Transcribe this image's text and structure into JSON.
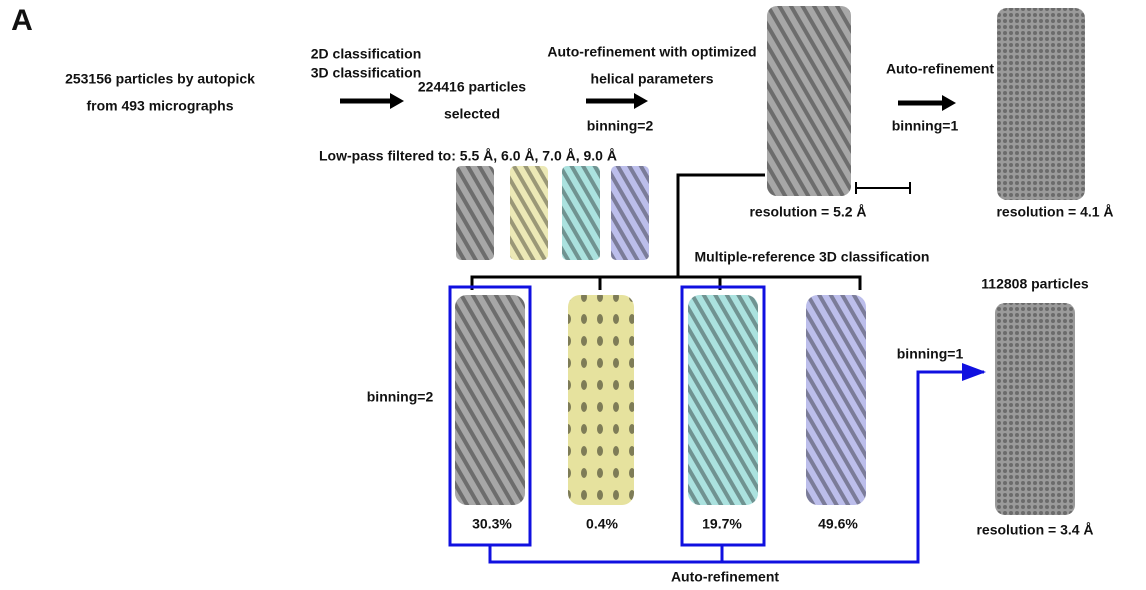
{
  "panel_label": "A",
  "start": {
    "line1": "253156 particles by autopick",
    "line2": "from 493 micrographs"
  },
  "classification": {
    "line1": "2D classification",
    "line2": "3D classification"
  },
  "selected": {
    "line1": "224416 particles",
    "line2": "selected"
  },
  "helical_refinement": {
    "line1": "Auto-refinement with optimized",
    "line2": "helical parameters",
    "binning": "binning=2",
    "resolution": "resolution = 5.2 Å"
  },
  "low_pass": "Low-pass filtered to: 5.5 Å, 6.0 Å, 7.0 Å, 9.0 Å",
  "refinement_bin1": {
    "label": "Auto-refinement",
    "binning": "binning=1",
    "resolution": "resolution = 4.1 Å"
  },
  "multi_ref": {
    "label": "Multiple-reference 3D classification",
    "binning": "binning=2",
    "classes": [
      "30.3%",
      "0.4%",
      "19.7%",
      "49.6%"
    ]
  },
  "final": {
    "particles": "112808 particles",
    "binning": "binning=1",
    "resolution": "resolution = 3.4 Å"
  },
  "bottom_label": "Auto-refinement"
}
